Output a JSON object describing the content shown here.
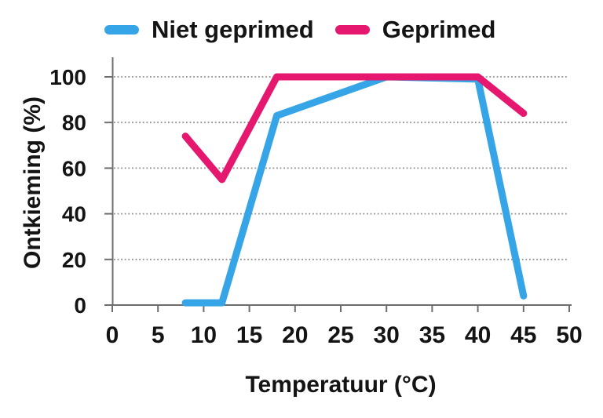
{
  "chart_data": {
    "type": "line",
    "title": "",
    "xlabel": "Temperatuur (°C)",
    "ylabel": "Ontkieming (%)",
    "xlim": [
      0,
      50
    ],
    "ylim": [
      0,
      100
    ],
    "x_ticks": [
      0,
      5,
      10,
      15,
      20,
      25,
      30,
      35,
      40,
      45,
      50
    ],
    "y_ticks": [
      0,
      20,
      40,
      60,
      80,
      100
    ],
    "grid": "horizontal dotted gridlines at each nonzero y tick",
    "legend_position": "top",
    "series": [
      {
        "name": "Niet geprimed",
        "color": "#36A5E8",
        "points": [
          [
            8,
            1
          ],
          [
            12,
            1
          ],
          [
            18,
            83
          ],
          [
            30,
            100
          ],
          [
            40,
            99
          ],
          [
            45,
            4
          ]
        ]
      },
      {
        "name": "Geprimed",
        "color": "#E5176E",
        "points": [
          [
            8,
            74
          ],
          [
            12,
            55
          ],
          [
            18,
            100
          ],
          [
            40,
            100
          ],
          [
            45,
            84
          ]
        ]
      }
    ]
  },
  "colors": {
    "axis": "#6d6d6d",
    "gridline": "#8f8f8f",
    "text": "#141414",
    "background": "#ffffff"
  }
}
